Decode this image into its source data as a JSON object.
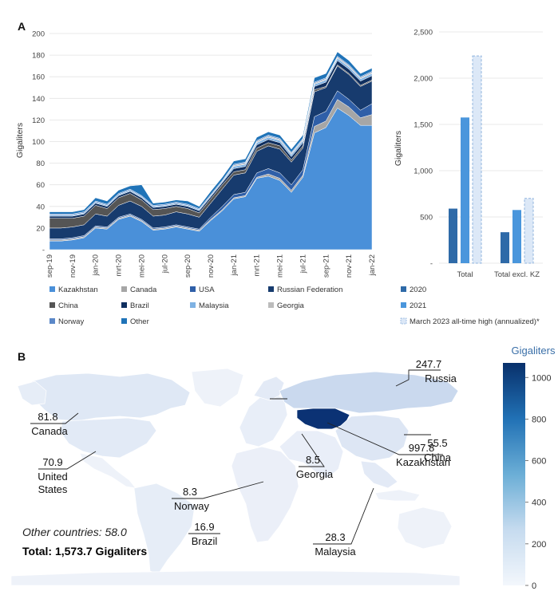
{
  "panels": {
    "a": "A",
    "b": "B"
  },
  "chart_data": [
    {
      "type": "area",
      "stacked": true,
      "ylabel": "Gigaliters",
      "ylim": [
        0,
        200
      ],
      "yticks": [
        "-",
        "20",
        "40",
        "60",
        "80",
        "100",
        "120",
        "140",
        "160",
        "180",
        "200"
      ],
      "grid": true,
      "x": [
        "sep-19",
        "okt-19",
        "nov-19",
        "dec-19",
        "jan-20",
        "feb-20",
        "mrt-20",
        "apr-20",
        "mei-20",
        "jun-20",
        "jul-20",
        "aug-20",
        "sep-20",
        "okt-20",
        "nov-20",
        "dec-20",
        "jan-21",
        "feb-21",
        "mrt-21",
        "apr-21",
        "mei-21",
        "jun-21",
        "jul-21",
        "aug-21",
        "sep-21",
        "okt-21",
        "nov-21",
        "dec-21",
        "jan-22"
      ],
      "x_tick_labels": [
        "sep-19",
        "nov-19",
        "jan-20",
        "mrt-20",
        "mei-20",
        "jul-20",
        "sep-20",
        "nov-20",
        "jan-21",
        "mrt-21",
        "mei-21",
        "jul-21",
        "sep-21",
        "nov-21",
        "jan-22"
      ],
      "series": [
        {
          "name": "Kazakhstan",
          "color": "#4a90d9",
          "values": [
            8,
            8,
            9,
            11,
            20,
            19,
            28,
            31,
            26,
            18,
            19,
            21,
            19,
            17,
            27,
            36,
            47,
            49,
            66,
            68,
            64,
            53,
            67,
            108,
            113,
            131,
            124,
            115,
            115
          ]
        },
        {
          "name": "Canada",
          "color": "#a6a6a6",
          "values": [
            1,
            1,
            1,
            1,
            1,
            1,
            1,
            1,
            1,
            1,
            1,
            1,
            1,
            1,
            1,
            1,
            1,
            1,
            1,
            2,
            2,
            2,
            2,
            6,
            6,
            8,
            8,
            7,
            10
          ]
        },
        {
          "name": "USA",
          "color": "#2f5fa8",
          "values": [
            1,
            1,
            1,
            1,
            1,
            1,
            1,
            1,
            1,
            1,
            1,
            1,
            1,
            1,
            2,
            3,
            3,
            3,
            4,
            5,
            5,
            5,
            5,
            9,
            9,
            8,
            7,
            7,
            10
          ]
        },
        {
          "name": "Russian Federation",
          "color": "#173b6e",
          "values": [
            10,
            10,
            10,
            10,
            11,
            10,
            11,
            12,
            12,
            11,
            11,
            12,
            12,
            11,
            13,
            16,
            18,
            18,
            20,
            21,
            22,
            21,
            20,
            23,
            22,
            23,
            23,
            22,
            21
          ]
        },
        {
          "name": "China",
          "color": "#555555",
          "values": [
            9,
            9,
            8,
            8,
            8,
            7,
            7,
            7,
            6,
            6,
            6,
            5,
            5,
            4,
            4,
            4,
            3,
            3,
            3,
            3,
            3,
            2,
            2,
            2,
            1,
            1,
            1,
            1,
            1
          ]
        },
        {
          "name": "Brazil",
          "color": "#0f2f5f",
          "values": [
            2,
            2,
            2,
            2,
            2,
            2,
            2,
            2,
            2,
            2,
            2,
            2,
            2,
            2,
            2,
            2,
            3,
            3,
            3,
            3,
            3,
            3,
            3,
            3,
            4,
            4,
            4,
            4,
            4
          ]
        },
        {
          "name": "Malaysia",
          "color": "#7fb2e3",
          "values": [
            1,
            1,
            1,
            1,
            1,
            1,
            1,
            1,
            1,
            1,
            1,
            1,
            1,
            1,
            1,
            1,
            2,
            2,
            2,
            2,
            2,
            2,
            2,
            2,
            2,
            2,
            2,
            2,
            2
          ]
        },
        {
          "name": "Georgia",
          "color": "#bcbcbc",
          "values": [
            0,
            0,
            0,
            0,
            0,
            0,
            0,
            0,
            0,
            0,
            0,
            0,
            0,
            0,
            0,
            0,
            1,
            1,
            1,
            1,
            1,
            1,
            1,
            1,
            1,
            1,
            1,
            1,
            1
          ]
        },
        {
          "name": "Norway",
          "color": "#5b88c8",
          "values": [
            1,
            1,
            1,
            1,
            1,
            1,
            1,
            1,
            1,
            1,
            1,
            1,
            1,
            1,
            1,
            1,
            1,
            1,
            1,
            1,
            1,
            1,
            1,
            1,
            1,
            1,
            1,
            1,
            1
          ]
        },
        {
          "name": "Other",
          "color": "#1f73b8",
          "values": [
            2,
            2,
            2,
            2,
            3,
            3,
            3,
            3,
            10,
            2,
            2,
            2,
            3,
            2,
            3,
            3,
            3,
            3,
            3,
            3,
            3,
            3,
            3,
            4,
            4,
            4,
            4,
            3,
            3
          ]
        }
      ]
    },
    {
      "type": "bar",
      "ylabel": "Gigaliters",
      "ylim": [
        0,
        2500
      ],
      "yticks": [
        "-",
        "500",
        "1,000",
        "1,500",
        "2,000",
        "2,500"
      ],
      "grid": true,
      "categories": [
        "Total",
        "Total excl. KZ"
      ],
      "series": [
        {
          "name": "2020",
          "color": "#2e6aa8",
          "values": [
            590,
            335
          ]
        },
        {
          "name": "2021",
          "color": "#4a96dc",
          "values": [
            1575,
            575
          ]
        },
        {
          "name": "March 2023 all-time high (annualized)*",
          "color": "#dce8f7",
          "stroke": "#8fb3de",
          "dashed": true,
          "values": [
            2240,
            700
          ]
        }
      ]
    }
  ],
  "map": {
    "colorbar": {
      "title": "Gigaliters",
      "ticks": [
        "0",
        "200",
        "400",
        "600",
        "800",
        "1000"
      ],
      "range": [
        0,
        1070
      ],
      "color_low": "#f3f7fc",
      "color_high": "#08306b"
    },
    "countries": [
      {
        "name": "Russia",
        "value": "247.7"
      },
      {
        "name": "Canada",
        "value": "81.8"
      },
      {
        "name": "Norway",
        "value": "8.3"
      },
      {
        "name": "China",
        "value": "55.5"
      },
      {
        "name": "Kazakhstan",
        "value": "997.8"
      },
      {
        "name": "United States",
        "name_lines": [
          "United",
          "States"
        ],
        "value": "70.9"
      },
      {
        "name": "Georgia",
        "value": "8.5"
      },
      {
        "name": "Brazil",
        "value": "16.9"
      },
      {
        "name": "Malaysia",
        "value": "28.3"
      }
    ],
    "other_countries": "Other countries: 58.0",
    "total": "Total: 1,573.7 Gigaliters"
  }
}
